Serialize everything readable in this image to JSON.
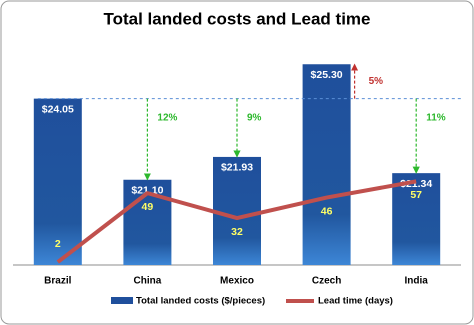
{
  "chart_data": {
    "type": "bar-line",
    "title": "Total landed costs and Lead time",
    "categories": [
      "Brazil",
      "China",
      "Mexico",
      "Czech",
      "India"
    ],
    "series": [
      {
        "name": "Total landed costs ($/pieces)",
        "type": "bar",
        "color": "#1f4f9c",
        "values": [
          24.05,
          21.1,
          21.93,
          25.3,
          21.34
        ],
        "value_labels": [
          "$24.05",
          "$21.10",
          "$21.93",
          "$25.30",
          "$21.34"
        ]
      },
      {
        "name": "Lead time (days)",
        "type": "line",
        "axis": "y2",
        "color": "#c0504d",
        "values": [
          2,
          49,
          32,
          46,
          57
        ]
      }
    ],
    "ylim": [
      18,
      26
    ],
    "y2lim": [
      0,
      150
    ],
    "annotations": [
      "12%",
      "9%",
      "5%",
      "11%"
    ],
    "legend": "bottom"
  }
}
